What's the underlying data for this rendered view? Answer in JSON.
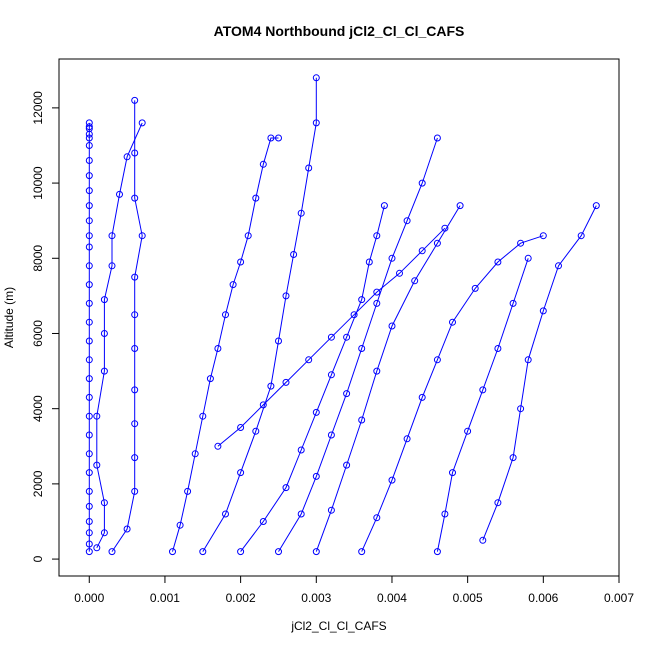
{
  "chart_data": {
    "type": "scatter",
    "title": "ATOM4 Northbound jCl2_Cl_Cl_CAFS",
    "xlabel": "jCl2_Cl_Cl_CAFS",
    "ylabel": "Altitude (m)",
    "xlim": [
      -0.0004,
      0.007
    ],
    "ylim": [
      -450,
      13300
    ],
    "xticks": [
      {
        "value": 0.0,
        "label": "0.000"
      },
      {
        "value": 0.001,
        "label": "0.001"
      },
      {
        "value": 0.002,
        "label": "0.002"
      },
      {
        "value": 0.003,
        "label": "0.003"
      },
      {
        "value": 0.004,
        "label": "0.004"
      },
      {
        "value": 0.005,
        "label": "0.005"
      },
      {
        "value": 0.006,
        "label": "0.006"
      },
      {
        "value": 0.007,
        "label": "0.007"
      }
    ],
    "yticks": [
      {
        "value": 0,
        "label": "0"
      },
      {
        "value": 2000,
        "label": "2000"
      },
      {
        "value": 4000,
        "label": "4000"
      },
      {
        "value": 6000,
        "label": "6000"
      },
      {
        "value": 8000,
        "label": "8000"
      },
      {
        "value": 10000,
        "label": "10000"
      },
      {
        "value": 12000,
        "label": "12000"
      }
    ],
    "grid": false,
    "legend": "none",
    "marker": "open-circle",
    "line": true,
    "color": "#0000ff",
    "series": [
      {
        "x": [
          0.0,
          0.0,
          0.0,
          0.0,
          0.0,
          0.0,
          0.0,
          0.0,
          0.0,
          0.0,
          0.0,
          0.0,
          0.0,
          0.0,
          0.0,
          0.0,
          0.0,
          0.0,
          0.0,
          0.0,
          0.0,
          0.0,
          0.0,
          0.0,
          0.0,
          0.0,
          0.0,
          0.0,
          0.0,
          0.0,
          0.0
        ],
        "y": [
          200,
          400,
          700,
          1000,
          1400,
          1800,
          2300,
          2800,
          3300,
          3800,
          4300,
          4800,
          5300,
          5800,
          6300,
          6800,
          7300,
          7800,
          8300,
          8600,
          9000,
          9400,
          9800,
          10200,
          10600,
          11000,
          11300,
          11500,
          11600,
          11450,
          11200
        ]
      },
      {
        "x": [
          0.0001,
          0.0002,
          0.0002,
          0.0001,
          0.0001,
          0.0002,
          0.0002,
          0.0002,
          0.0003,
          0.0003,
          0.0004,
          0.0005,
          0.0007
        ],
        "y": [
          300,
          700,
          1500,
          2500,
          3800,
          5000,
          6000,
          6900,
          7800,
          8600,
          9700,
          10700,
          11600
        ]
      },
      {
        "x": [
          0.0003,
          0.0005,
          0.0006,
          0.0006,
          0.0006,
          0.0006,
          0.0006,
          0.0006,
          0.0006,
          0.0007,
          0.0006,
          0.0006,
          0.0006
        ],
        "y": [
          200,
          800,
          1800,
          2700,
          3600,
          4500,
          5600,
          6500,
          7500,
          8600,
          9600,
          10800,
          12200
        ]
      },
      {
        "x": [
          0.0011,
          0.0012,
          0.0013,
          0.0014,
          0.0015,
          0.0016,
          0.0017,
          0.0018,
          0.0019,
          0.002,
          0.0021,
          0.0022,
          0.0023,
          0.0024,
          0.0025
        ],
        "y": [
          200,
          900,
          1800,
          2800,
          3800,
          4800,
          5600,
          6500,
          7300,
          7900,
          8600,
          9600,
          10500,
          11200,
          11200
        ]
      },
      {
        "x": [
          0.0015,
          0.0018,
          0.002,
          0.0022,
          0.0024,
          0.0025,
          0.0026,
          0.0027,
          0.0028,
          0.0029,
          0.003,
          0.003
        ],
        "y": [
          200,
          1200,
          2300,
          3400,
          4600,
          5800,
          7000,
          8100,
          9200,
          10400,
          11600,
          12800
        ]
      },
      {
        "x": [
          0.002,
          0.0023,
          0.0026,
          0.0028,
          0.003,
          0.0032,
          0.0034,
          0.0036,
          0.0037,
          0.0038,
          0.0039
        ],
        "y": [
          200,
          1000,
          1900,
          2900,
          3900,
          4900,
          5900,
          6900,
          7900,
          8600,
          9400
        ]
      },
      {
        "x": [
          0.0025,
          0.0028,
          0.003,
          0.0032,
          0.0034,
          0.0036,
          0.0038,
          0.004,
          0.0042,
          0.0044,
          0.0046
        ],
        "y": [
          200,
          1200,
          2200,
          3300,
          4400,
          5600,
          6800,
          8000,
          9000,
          10000,
          11200
        ]
      },
      {
        "x": [
          0.003,
          0.0032,
          0.0034,
          0.0036,
          0.0038,
          0.004,
          0.0043,
          0.0046,
          0.0049
        ],
        "y": [
          200,
          1300,
          2500,
          3700,
          5000,
          6200,
          7400,
          8400,
          9400
        ]
      },
      {
        "x": [
          0.0036,
          0.0038,
          0.004,
          0.0042,
          0.0044,
          0.0046,
          0.0048,
          0.0051,
          0.0054,
          0.0057,
          0.006
        ],
        "y": [
          200,
          1100,
          2100,
          3200,
          4300,
          5300,
          6300,
          7200,
          7900,
          8400,
          8600
        ]
      },
      {
        "x": [
          0.0046,
          0.0047,
          0.0048,
          0.005,
          0.0052,
          0.0054,
          0.0056,
          0.0058
        ],
        "y": [
          200,
          1200,
          2300,
          3400,
          4500,
          5600,
          6800,
          8000
        ]
      },
      {
        "x": [
          0.0052,
          0.0054,
          0.0056,
          0.0057,
          0.0058,
          0.006,
          0.0062,
          0.0065,
          0.0067
        ],
        "y": [
          500,
          1500,
          2700,
          4000,
          5300,
          6600,
          7800,
          8600,
          9400
        ]
      },
      {
        "x": [
          0.0017,
          0.002,
          0.0023,
          0.0026,
          0.0029,
          0.0032,
          0.0035,
          0.0038,
          0.0041,
          0.0044,
          0.0047
        ],
        "y": [
          3000,
          3500,
          4100,
          4700,
          5300,
          5900,
          6500,
          7100,
          7600,
          8200,
          8800
        ]
      }
    ]
  }
}
